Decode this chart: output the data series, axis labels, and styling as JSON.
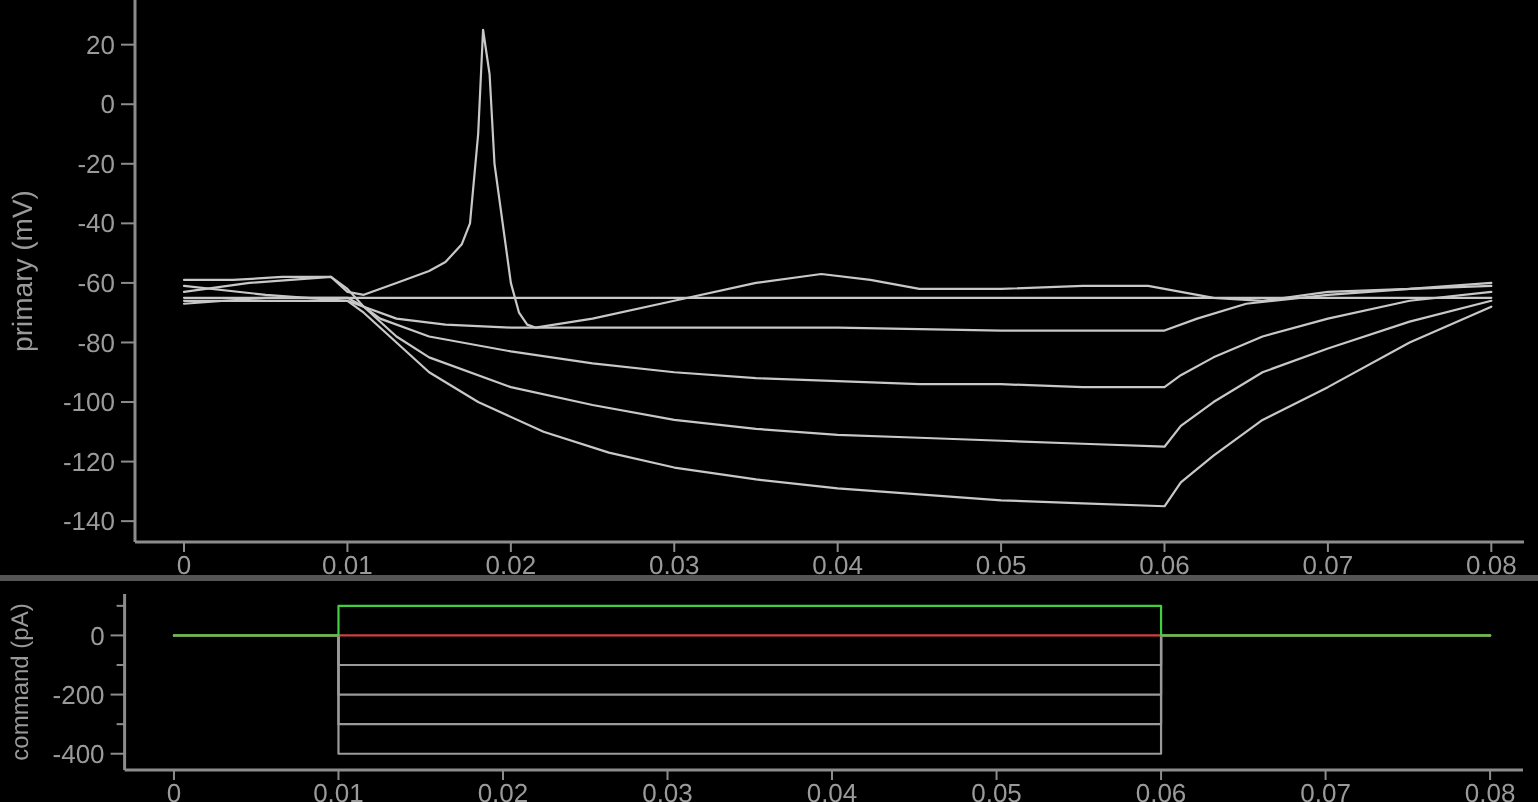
{
  "chart_data": [
    {
      "type": "line",
      "ylabel": "primary (mV)",
      "xlim": [
        -0.003,
        0.082
      ],
      "xticks": [
        0,
        0.01,
        0.02,
        0.03,
        0.04,
        0.05,
        0.06,
        0.07,
        0.08
      ],
      "ylim": [
        -147,
        35
      ],
      "yticks": [
        20,
        0,
        -20,
        -40,
        -60,
        -80,
        -100,
        -120,
        -140
      ],
      "grid": false,
      "line_style": "solid",
      "series": [
        {
          "color": "#c8c8c8",
          "x": [
            0,
            0.003,
            0.006,
            0.009,
            0.01,
            0.011,
            0.013,
            0.015,
            0.016,
            0.017,
            0.0175,
            0.018,
            0.0183,
            0.0187,
            0.019,
            0.02,
            0.0205,
            0.021,
            0.0215,
            0.025,
            0.03,
            0.035,
            0.039,
            0.042,
            0.045,
            0.05,
            0.055,
            0.059,
            0.06,
            0.063,
            0.066,
            0.07,
            0.075,
            0.08
          ],
          "values": [
            -59,
            -59,
            -58,
            -58,
            -63,
            -64,
            -60,
            -56,
            -53,
            -47,
            -40,
            -10,
            25,
            10,
            -20,
            -60,
            -70,
            -74,
            -75,
            -72,
            -66,
            -60,
            -57,
            -59,
            -62,
            -62,
            -61,
            -61,
            -62,
            -65,
            -66,
            -63,
            -62,
            -60
          ]
        },
        {
          "color": "#c8c8c8",
          "x": [
            0,
            0.01,
            0.02,
            0.03,
            0.04,
            0.05,
            0.06,
            0.07,
            0.08
          ],
          "values": [
            -65,
            -65,
            -65,
            -65,
            -65,
            -65,
            -65,
            -65,
            -65
          ]
        },
        {
          "color": "#c8c8c8",
          "x": [
            0,
            0.004,
            0.009,
            0.01,
            0.011,
            0.013,
            0.016,
            0.02,
            0.03,
            0.04,
            0.05,
            0.06,
            0.062,
            0.065,
            0.07,
            0.075,
            0.08
          ],
          "values": [
            -63,
            -60,
            -58,
            -62,
            -68,
            -72,
            -74,
            -75,
            -75,
            -75,
            -76,
            -76,
            -72,
            -67,
            -64,
            -62,
            -61
          ]
        },
        {
          "color": "#c8c8c8",
          "x": [
            0,
            0.005,
            0.01,
            0.011,
            0.012,
            0.015,
            0.02,
            0.025,
            0.03,
            0.035,
            0.04,
            0.045,
            0.05,
            0.055,
            0.06,
            0.061,
            0.063,
            0.066,
            0.07,
            0.075,
            0.08
          ],
          "values": [
            -67,
            -65,
            -65,
            -68,
            -72,
            -78,
            -83,
            -87,
            -90,
            -92,
            -93,
            -94,
            -94,
            -95,
            -95,
            -91,
            -85,
            -78,
            -72,
            -66,
            -63
          ]
        },
        {
          "color": "#c8c8c8",
          "x": [
            0,
            0.005,
            0.01,
            0.011,
            0.013,
            0.015,
            0.02,
            0.025,
            0.03,
            0.035,
            0.04,
            0.045,
            0.05,
            0.055,
            0.06,
            0.061,
            0.063,
            0.066,
            0.07,
            0.075,
            0.08
          ],
          "values": [
            -61,
            -64,
            -66,
            -68,
            -78,
            -85,
            -95,
            -101,
            -106,
            -109,
            -111,
            -112,
            -113,
            -114,
            -115,
            -108,
            -100,
            -90,
            -82,
            -73,
            -66
          ]
        },
        {
          "color": "#c8c8c8",
          "x": [
            0,
            0.005,
            0.01,
            0.011,
            0.013,
            0.015,
            0.018,
            0.022,
            0.026,
            0.03,
            0.035,
            0.04,
            0.045,
            0.05,
            0.055,
            0.06,
            0.061,
            0.063,
            0.066,
            0.07,
            0.075,
            0.08
          ],
          "values": [
            -66,
            -66,
            -66,
            -70,
            -80,
            -90,
            -100,
            -110,
            -117,
            -122,
            -126,
            -129,
            -131,
            -133,
            -134,
            -135,
            -127,
            -118,
            -106,
            -95,
            -80,
            -68
          ]
        }
      ]
    },
    {
      "type": "line",
      "ylabel": "command (pA)",
      "xlim": [
        -0.003,
        0.082
      ],
      "xticks": [
        0,
        0.01,
        0.02,
        0.03,
        0.04,
        0.05,
        0.06,
        0.07,
        0.08
      ],
      "ylim": [
        -455,
        140
      ],
      "yticks": [
        {
          "value": 100,
          "label": null
        },
        0,
        {
          "value": -100,
          "label": null
        },
        -200,
        {
          "value": -300,
          "label": null
        },
        -400
      ],
      "grid": false,
      "line_style": "solid",
      "series": [
        {
          "color": "#9a9a9a",
          "x": [
            0,
            0.01,
            0.01,
            0.06,
            0.06,
            0.08
          ],
          "values": [
            0,
            0,
            -400,
            -400,
            0,
            0
          ]
        },
        {
          "color": "#9a9a9a",
          "x": [
            0,
            0.01,
            0.01,
            0.06,
            0.06,
            0.08
          ],
          "values": [
            0,
            0,
            -300,
            -300,
            0,
            0
          ]
        },
        {
          "color": "#9a9a9a",
          "x": [
            0,
            0.01,
            0.01,
            0.06,
            0.06,
            0.08
          ],
          "values": [
            0,
            0,
            -200,
            -200,
            0,
            0
          ]
        },
        {
          "color": "#9a9a9a",
          "x": [
            0,
            0.01,
            0.01,
            0.06,
            0.06,
            0.08
          ],
          "values": [
            0,
            0,
            -100,
            -100,
            0,
            0
          ]
        },
        {
          "color": "#d04040",
          "x": [
            0,
            0.01,
            0.01,
            0.06,
            0.06,
            0.08
          ],
          "values": [
            0,
            0,
            0,
            0,
            0,
            0
          ]
        },
        {
          "color": "#40d040",
          "x": [
            0,
            0.01,
            0.01,
            0.06,
            0.06,
            0.08
          ],
          "values": [
            0,
            0,
            100,
            100,
            0,
            0
          ]
        }
      ]
    }
  ]
}
